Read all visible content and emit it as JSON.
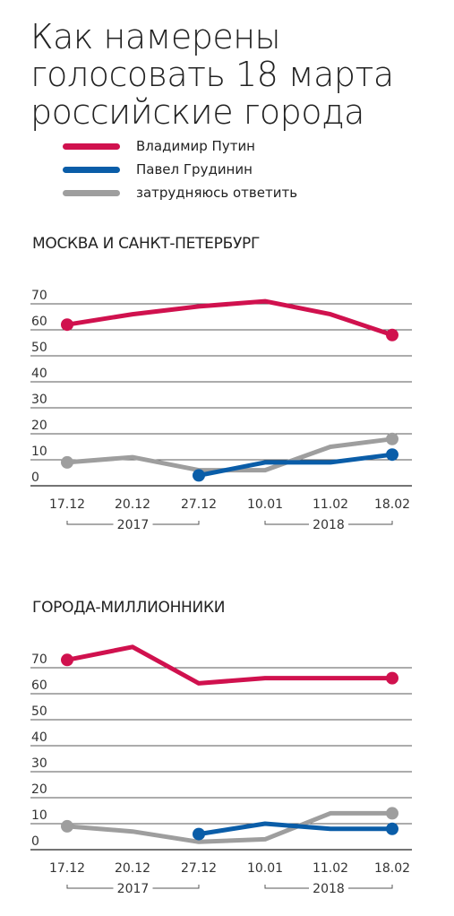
{
  "title_lines": [
    "Как намерены",
    "голосовать 18 марта",
    "российские города"
  ],
  "legend": [
    {
      "label": "Владимир Путин",
      "color": "#d0114e"
    },
    {
      "label": "Павел Грудинин",
      "color": "#0a5da8"
    },
    {
      "label": "затрудняюсь ответить",
      "color": "#9e9e9e"
    }
  ],
  "chart_data": [
    {
      "type": "line",
      "title": "МОСКВА И САНКТ-ПЕТЕРБУРГ",
      "categories": [
        "17.12",
        "20.12",
        "27.12",
        "10.01",
        "11.02",
        "18.02"
      ],
      "year_groups": [
        {
          "label": "2017",
          "from": "17.12",
          "to": "27.12"
        },
        {
          "label": "2018",
          "from": "10.01",
          "to": "18.02"
        }
      ],
      "ylim": [
        0,
        70
      ],
      "yticks": [
        0,
        10,
        20,
        30,
        40,
        50,
        60,
        70
      ],
      "series": [
        {
          "name": "Владимир Путин",
          "color": "#d0114e",
          "values": [
            62,
            66,
            69,
            71,
            66,
            58
          ]
        },
        {
          "name": "Павел Грудинин",
          "color": "#0a5da8",
          "values": [
            null,
            null,
            4,
            9,
            9,
            12
          ]
        },
        {
          "name": "затрудняюсь ответить",
          "color": "#9e9e9e",
          "values": [
            9,
            11,
            6,
            6,
            15,
            18
          ]
        }
      ]
    },
    {
      "type": "line",
      "title": "ГОРОДА-МИЛЛИОННИКИ",
      "categories": [
        "17.12",
        "20.12",
        "27.12",
        "10.01",
        "11.02",
        "18.02"
      ],
      "year_groups": [
        {
          "label": "2017",
          "from": "17.12",
          "to": "27.12"
        },
        {
          "label": "2018",
          "from": "10.01",
          "to": "18.02"
        }
      ],
      "ylim": [
        0,
        70
      ],
      "yticks": [
        0,
        10,
        20,
        30,
        40,
        50,
        60,
        70
      ],
      "series": [
        {
          "name": "Владимир Путин",
          "color": "#d0114e",
          "values": [
            73,
            78,
            64,
            66,
            66,
            66
          ]
        },
        {
          "name": "Павел Грудинин",
          "color": "#0a5da8",
          "values": [
            null,
            null,
            6,
            10,
            8,
            8
          ]
        },
        {
          "name": "затрудняюсь ответить",
          "color": "#9e9e9e",
          "values": [
            9,
            7,
            3,
            4,
            14,
            14
          ]
        }
      ]
    }
  ]
}
